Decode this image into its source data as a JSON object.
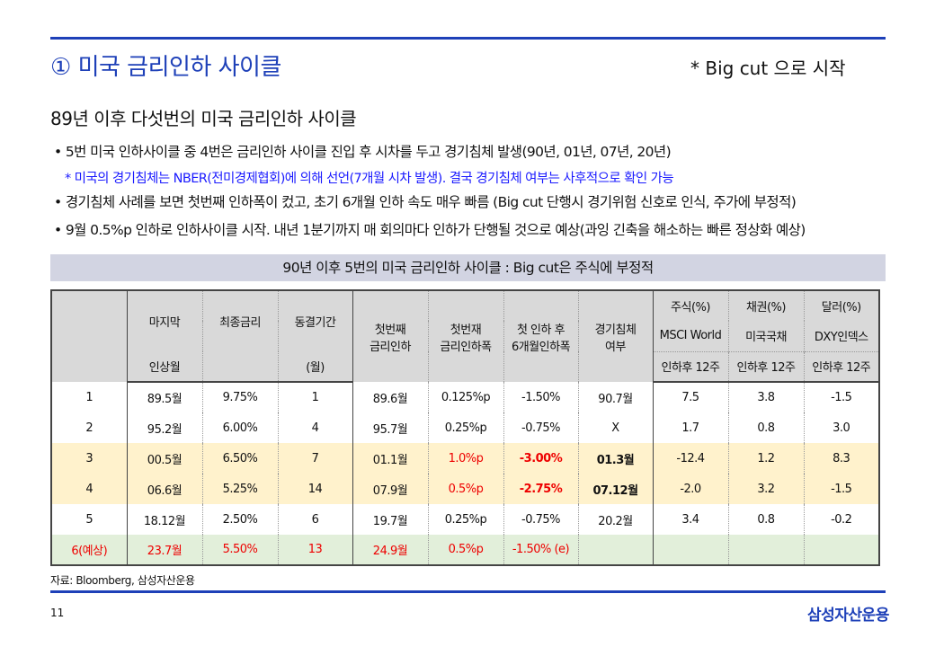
{
  "header": {
    "title": "① 미국 금리인하 사이클",
    "tagline": "* Big cut 으로 시작"
  },
  "subtitle": "89년 이후 다섯번의 미국 금리인하 사이클",
  "bullets": [
    "• 5번 미국 인하사이클 중 4번은 금리인하 사이클 진입 후 시차를 두고 경기침체 발생(90년, 01년, 07년, 20년)",
    "* 미국의 경기침체는 NBER(전미경제협회)에 의해 선언(7개월 시차 발생). 결국 경기침체 여부는 사후적으로 확인 가능",
    "• 경기침체 사례를 보면 첫번째 인하폭이 컸고, 초기 6개월 인하 속도 매우 빠름 (Big cut 단행시 경기위험 신호로 인식, 주가에 부정적)",
    "• 9월 0.5%p 인하로 인하사이클 시작. 내년 1분기까지 매 회의마다 인하가 단행될 것으로 예상(과잉 긴축을 해소하는 빠른 정상화 예상)"
  ],
  "table": {
    "caption": "90년 이후 5번의 미국 금리인하 사이클 : Big cut은 주식에 부정적",
    "headers": {
      "last_hike": "마지막",
      "last_hike2": "인상월",
      "final_rate": "최종금리",
      "freeze": "동결기간",
      "freeze2": "(월)",
      "first_cut": "첫번째\n금리인하",
      "first_cut_size": "첫번재\n금리인하폭",
      "six_month": "첫 인하 후\n6개월인하폭",
      "recession": "경기침체\n여부",
      "stock": "주식(%)",
      "stock2": "MSCI World",
      "bond": "채권(%)",
      "bond2": "미국국채",
      "dollar": "달러(%)",
      "dollar2": "DXY인덱스",
      "after": "인하후 12주"
    },
    "rows": [
      [
        "1",
        "89.5월",
        "9.75%",
        "1",
        "89.6월",
        "0.125%p",
        "-1.50%",
        "90.7월",
        "7.5",
        "3.8",
        "-1.5"
      ],
      [
        "2",
        "95.2월",
        "6.00%",
        "4",
        "95.7월",
        "0.25%p",
        "-0.75%",
        "X",
        "1.7",
        "0.8",
        "3.0"
      ],
      [
        "3",
        "00.5월",
        "6.50%",
        "7",
        "01.1월",
        "1.0%p",
        "-3.00%",
        "01.3월",
        "-12.4",
        "1.2",
        "8.3"
      ],
      [
        "4",
        "06.6월",
        "5.25%",
        "14",
        "07.9월",
        "0.5%p",
        "-2.75%",
        "07.12월",
        "-2.0",
        "3.2",
        "-1.5"
      ],
      [
        "5",
        "18.12월",
        "2.50%",
        "6",
        "19.7월",
        "0.25%p",
        "-0.75%",
        "20.2월",
        "3.4",
        "0.8",
        "-0.2"
      ],
      [
        "6(예상)",
        "23.7월",
        "5.50%",
        "13",
        "24.9월",
        "0.5%p",
        "-1.50% (e)",
        "",
        "",
        "",
        ""
      ]
    ]
  },
  "source": "자료: Bloomberg, 삼성자산운용",
  "page": "11",
  "logo": "삼성자산운용"
}
